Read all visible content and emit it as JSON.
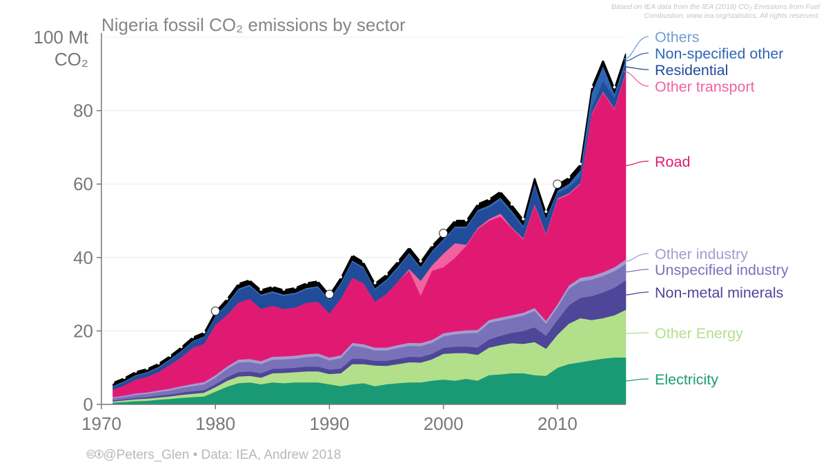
{
  "credit": "Based on IEA data from the IEA (2018) CO₂ Emissions from Fuel Combustion, www.iea.org/statistics. All rights reserved.",
  "footer": "🅭🅯@Peters_Glen  •  Data: IEA, Andrew 2018",
  "chart_data": {
    "type": "area",
    "title": "Nigeria fossil CO₂ emissions by sector",
    "ylabel_line1": "100 Mt",
    "ylabel_line2": "CO₂",
    "xlabel": "",
    "xlim": [
      1970,
      2016
    ],
    "ylim": [
      0,
      100
    ],
    "xticks": [
      "1970",
      "1980",
      "1990",
      "2000",
      "2010"
    ],
    "yticks": [
      "0",
      "20",
      "40",
      "60",
      "80"
    ],
    "x": [
      1971,
      1972,
      1973,
      1974,
      1975,
      1976,
      1977,
      1978,
      1979,
      1980,
      1981,
      1982,
      1983,
      1984,
      1985,
      1986,
      1987,
      1988,
      1989,
      1990,
      1991,
      1992,
      1993,
      1994,
      1995,
      1996,
      1997,
      1998,
      1999,
      2000,
      2001,
      2002,
      2003,
      2004,
      2005,
      2006,
      2007,
      2008,
      2009,
      2010,
      2011,
      2012,
      2013,
      2014,
      2015,
      2016
    ],
    "series": [
      {
        "name": "Electricity",
        "color": "#1a9a74",
        "values": [
          0.5,
          0.7,
          0.9,
          1.0,
          1.3,
          1.5,
          1.8,
          2.0,
          2.2,
          3.5,
          4.8,
          5.8,
          6.0,
          5.5,
          6.0,
          5.8,
          6.0,
          6.0,
          6.0,
          5.5,
          5.0,
          5.5,
          5.8,
          5.0,
          5.5,
          5.8,
          6.0,
          6.0,
          6.5,
          6.8,
          6.5,
          7.0,
          6.5,
          8.0,
          8.2,
          8.5,
          8.5,
          8.0,
          7.8,
          10.0,
          11.0,
          11.5,
          12.0,
          12.5,
          12.8,
          12.8
        ]
      },
      {
        "name": "Other Energy",
        "color": "#b2df8a",
        "values": [
          0.3,
          0.4,
          0.5,
          0.6,
          0.6,
          0.7,
          0.8,
          0.9,
          1.0,
          1.2,
          1.6,
          1.8,
          1.8,
          1.8,
          2.5,
          2.8,
          2.8,
          3.0,
          3.0,
          2.8,
          3.5,
          5.5,
          5.2,
          5.6,
          5.0,
          5.2,
          5.5,
          5.4,
          5.8,
          7.0,
          7.5,
          7.0,
          7.0,
          7.5,
          8.0,
          8.2,
          8.0,
          9.0,
          7.4,
          9.0,
          11.0,
          12.0,
          11.0,
          11.0,
          11.5,
          13.0
        ]
      },
      {
        "name": "Non-metal minerals",
        "color": "#4d4699",
        "values": [
          0.3,
          0.3,
          0.4,
          0.4,
          0.5,
          0.5,
          0.6,
          0.7,
          0.7,
          0.8,
          1.0,
          1.2,
          1.2,
          1.2,
          1.2,
          1.2,
          1.2,
          1.3,
          1.3,
          1.2,
          1.3,
          1.5,
          1.4,
          1.3,
          1.4,
          1.4,
          1.5,
          1.5,
          1.5,
          1.6,
          1.7,
          1.8,
          2.0,
          2.2,
          2.5,
          2.8,
          3.5,
          4.0,
          3.5,
          4.0,
          5.0,
          5.5,
          6.5,
          7.0,
          7.5,
          8.0
        ]
      },
      {
        "name": "Unspecified industry",
        "color": "#7a72b8",
        "values": [
          0.6,
          0.7,
          0.8,
          0.9,
          1.0,
          1.1,
          1.3,
          1.4,
          1.6,
          1.8,
          2.2,
          2.6,
          2.6,
          2.5,
          2.5,
          2.5,
          2.5,
          2.6,
          2.8,
          2.5,
          2.8,
          3.5,
          3.2,
          2.8,
          2.8,
          3.0,
          3.0,
          3.0,
          3.0,
          3.2,
          3.4,
          3.6,
          4.0,
          4.5,
          4.2,
          4.0,
          4.2,
          4.5,
          3.3,
          3.5,
          4.5,
          4.5,
          4.5,
          4.5,
          4.5,
          4.5
        ]
      },
      {
        "name": "Other industry",
        "color": "#a59cd0",
        "values": [
          0.3,
          0.3,
          0.4,
          0.4,
          0.4,
          0.5,
          0.5,
          0.6,
          0.6,
          0.7,
          0.7,
          0.8,
          0.8,
          0.8,
          0.8,
          0.8,
          0.8,
          0.8,
          0.8,
          0.8,
          0.8,
          0.8,
          0.8,
          0.8,
          0.8,
          0.8,
          0.8,
          0.8,
          0.8,
          0.8,
          0.8,
          0.8,
          0.8,
          0.8,
          0.8,
          0.8,
          0.8,
          0.8,
          0.8,
          0.8,
          0.9,
          1.0,
          1.0,
          1.0,
          1.1,
          1.2
        ]
      },
      {
        "name": "Road",
        "color": "#e01a73",
        "values": [
          2.0,
          2.8,
          3.8,
          4.2,
          5.0,
          6.5,
          7.8,
          9.8,
          10.4,
          13.7,
          14.0,
          15.5,
          16.4,
          14.2,
          13.9,
          12.9,
          13.1,
          14.0,
          14.1,
          12.0,
          15.4,
          17.7,
          16.6,
          12.5,
          14.6,
          17.3,
          19.7,
          13.0,
          18.8,
          18.0,
          20.0,
          23.0,
          27.5,
          27.0,
          27.5,
          23.7,
          20.0,
          28.0,
          23.4,
          28.5,
          24.8,
          25.5,
          44.0,
          49.0,
          43.0,
          51.0
        ]
      },
      {
        "name": "Other transport",
        "color": "#f0639e",
        "values": [
          0,
          0,
          0,
          0,
          0,
          0,
          0,
          0,
          0,
          0,
          0,
          0,
          0,
          0,
          0,
          0,
          0,
          0,
          0,
          0,
          0,
          0,
          0,
          0,
          0,
          0,
          0.4,
          4.0,
          1.5,
          3.7,
          4.0,
          0.3,
          0.3,
          0.5,
          0.8,
          0.3,
          0.3,
          0.3,
          0.3,
          0.3,
          0.3,
          0.3,
          0.3,
          0.3,
          0.3,
          0.3
        ]
      },
      {
        "name": "Residential",
        "color": "#214c9a",
        "values": [
          0.8,
          0.9,
          1.0,
          1.1,
          1.2,
          1.3,
          1.6,
          1.7,
          1.8,
          2.2,
          2.8,
          3.4,
          3.4,
          3.5,
          3.5,
          3.5,
          3.6,
          3.6,
          3.8,
          3.3,
          4.0,
          4.3,
          4.0,
          3.2,
          3.5,
          3.6,
          4.0,
          3.3,
          3.5,
          3.5,
          4.1,
          4.5,
          4.4,
          3.1,
          3.6,
          3.8,
          2.8,
          5.0,
          3.8,
          1.5,
          1.5,
          1.8,
          1.5,
          2.8,
          2.8,
          2.2
        ]
      },
      {
        "name": "Non-specified other",
        "color": "#2e65b5",
        "values": [
          0.1,
          0.1,
          0.1,
          0.1,
          0.1,
          0.1,
          0.1,
          0.1,
          0.1,
          0.1,
          0.2,
          0.3,
          0.3,
          0.3,
          0.3,
          0.3,
          0.3,
          0.3,
          0.3,
          0.3,
          0.3,
          0.3,
          0.3,
          0.3,
          0.3,
          0.3,
          0.3,
          0.3,
          0.3,
          0.3,
          0.3,
          0.3,
          0.3,
          0.5,
          0.6,
          0.5,
          0.5,
          0.5,
          0.3,
          0.5,
          1.0,
          1.5,
          3.8,
          4.0,
          1.0,
          1.0
        ]
      },
      {
        "name": "Others",
        "color": "#6f9ed3",
        "values": [
          0.1,
          0.1,
          0.1,
          0.1,
          0.1,
          0.1,
          0.1,
          0.1,
          0.1,
          0.1,
          0.1,
          0.1,
          0.1,
          0.1,
          0.1,
          0.1,
          0.1,
          0.1,
          0.1,
          0.1,
          0.1,
          0.1,
          0.1,
          0.1,
          0.1,
          0.1,
          0.1,
          0.1,
          0.1,
          0.1,
          0.1,
          0.1,
          0.1,
          0.1,
          0.1,
          0.1,
          0.1,
          0.1,
          0.1,
          0.1,
          0.1,
          0.1,
          0.1,
          0.1,
          0.1,
          0.1
        ]
      }
    ],
    "residual": {
      "name": "Total edge",
      "color": "#000000",
      "values": [
        1.0,
        1.0,
        1.0,
        1.0,
        1.0,
        1.0,
        1.1,
        1.1,
        1.2,
        1.3,
        1.4,
        1.5,
        1.4,
        1.4,
        1.4,
        1.4,
        1.5,
        1.5,
        1.5,
        1.5,
        1.5,
        1.6,
        1.5,
        1.5,
        1.5,
        1.6,
        1.6,
        1.6,
        1.6,
        1.6,
        1.8,
        1.8,
        1.8,
        1.8,
        1.8,
        1.8,
        1.8,
        1.8,
        1.8,
        1.8,
        1.8,
        1.8,
        1.8,
        1.8,
        1.8,
        1.8
      ]
    },
    "highlight_years": [
      1980,
      1990,
      2000,
      2010
    ]
  }
}
